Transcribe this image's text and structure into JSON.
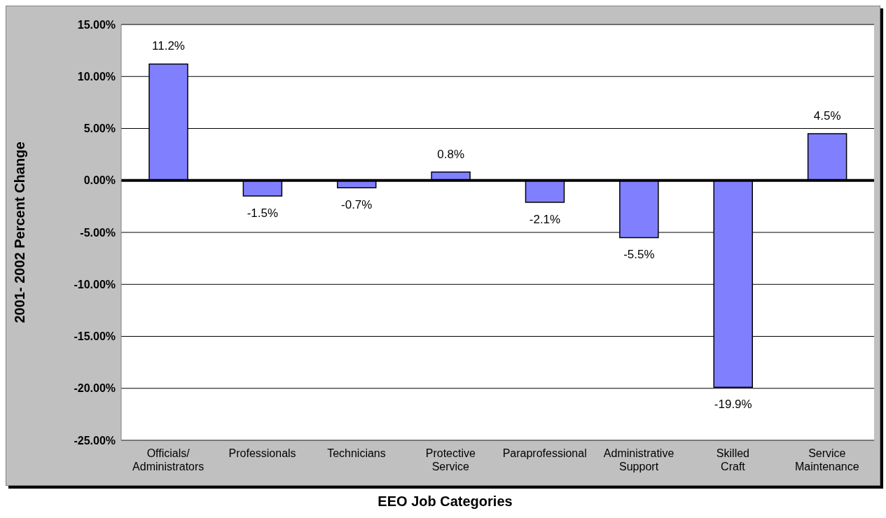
{
  "chart_data": {
    "type": "bar",
    "xlabel": "EEO Job Categories",
    "ylabel": "2001- 2002 Percent Change",
    "categories": [
      "Officials/ Administrators",
      "Professionals",
      "Technicians",
      "Protective Service",
      "Paraprofessional",
      "Administrative Support",
      "Skilled Craft",
      "Service Maintenance"
    ],
    "values": [
      11.2,
      -1.5,
      -0.7,
      0.8,
      -2.1,
      -5.5,
      -19.9,
      4.5
    ],
    "value_labels": [
      "11.2%",
      "-1.5%",
      "-0.7%",
      "0.8%",
      "-2.1%",
      "-5.5%",
      "-19.9%",
      "4.5%"
    ],
    "color": "#8080ff",
    "ylim": [
      -25,
      15
    ],
    "yticks": [
      {
        "value": -25,
        "label": "-25.00%"
      },
      {
        "value": -20,
        "label": "-20.00%"
      },
      {
        "value": -15,
        "label": "-15.00%"
      },
      {
        "value": -10,
        "label": "-10.00%"
      },
      {
        "value": -5,
        "label": "-5.00%"
      },
      {
        "value": 0,
        "label": "0.00%"
      },
      {
        "value": 5,
        "label": "5.00%"
      },
      {
        "value": 10,
        "label": "10.00%"
      },
      {
        "value": 15,
        "label": "15.00%"
      }
    ],
    "grid": "y",
    "legend": false
  }
}
